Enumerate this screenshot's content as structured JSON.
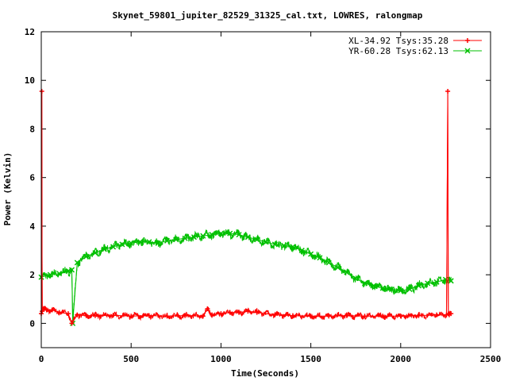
{
  "chart_data": {
    "type": "line",
    "title": "Skynet_59801_jupiter_82529_31325_cal.txt, LOWRES, ralongmap",
    "xlabel": "Time(Seconds)",
    "ylabel": "Power (Kelvin)",
    "xlim": [
      0,
      2500
    ],
    "ylim": [
      -1,
      12
    ],
    "xticks": [
      0,
      500,
      1000,
      1500,
      2000,
      2500
    ],
    "yticks": [
      0,
      2,
      4,
      6,
      8,
      10,
      12
    ],
    "grid": false,
    "legend_position": "top-right",
    "series": [
      {
        "name": "XL-34.92 Tsys:35.28",
        "color": "#ff0000",
        "marker": "plus",
        "noise": 0.1,
        "x": [
          0,
          3,
          5,
          15,
          30,
          60,
          100,
          150,
          170,
          200,
          250,
          300,
          400,
          500,
          600,
          700,
          800,
          900,
          925,
          950,
          1000,
          1050,
          1100,
          1150,
          1200,
          1300,
          1400,
          1500,
          1600,
          1700,
          1800,
          1900,
          2000,
          2100,
          2200,
          2255,
          2262,
          2265,
          2270,
          2280
        ],
        "y": [
          0.4,
          9.55,
          0.5,
          0.6,
          0.55,
          0.55,
          0.45,
          0.4,
          0.0,
          0.35,
          0.32,
          0.32,
          0.33,
          0.3,
          0.32,
          0.3,
          0.32,
          0.3,
          0.6,
          0.35,
          0.4,
          0.45,
          0.45,
          0.5,
          0.45,
          0.35,
          0.32,
          0.3,
          0.3,
          0.32,
          0.3,
          0.3,
          0.3,
          0.32,
          0.35,
          0.35,
          9.55,
          0.4,
          0.35,
          0.4
        ]
      },
      {
        "name": "YR-60.28 Tsys:62.13",
        "color": "#00c000",
        "marker": "cross",
        "noise": 0.14,
        "x": [
          0,
          50,
          100,
          150,
          170,
          175,
          200,
          250,
          300,
          350,
          400,
          450,
          500,
          550,
          600,
          650,
          700,
          750,
          800,
          850,
          900,
          950,
          1000,
          1050,
          1100,
          1150,
          1200,
          1250,
          1300,
          1350,
          1400,
          1450,
          1500,
          1550,
          1600,
          1650,
          1700,
          1750,
          1800,
          1850,
          1900,
          1950,
          2000,
          2050,
          2100,
          2150,
          2200,
          2250,
          2280
        ],
        "y": [
          1.9,
          2.0,
          2.05,
          2.15,
          2.2,
          0.0,
          2.5,
          2.75,
          2.9,
          3.05,
          3.15,
          3.25,
          3.3,
          3.35,
          3.35,
          3.3,
          3.4,
          3.45,
          3.5,
          3.55,
          3.6,
          3.65,
          3.7,
          3.7,
          3.65,
          3.55,
          3.45,
          3.35,
          3.25,
          3.2,
          3.15,
          3.0,
          2.85,
          2.7,
          2.5,
          2.3,
          2.1,
          1.85,
          1.65,
          1.55,
          1.45,
          1.4,
          1.35,
          1.4,
          1.55,
          1.65,
          1.7,
          1.8,
          1.75
        ]
      }
    ]
  }
}
